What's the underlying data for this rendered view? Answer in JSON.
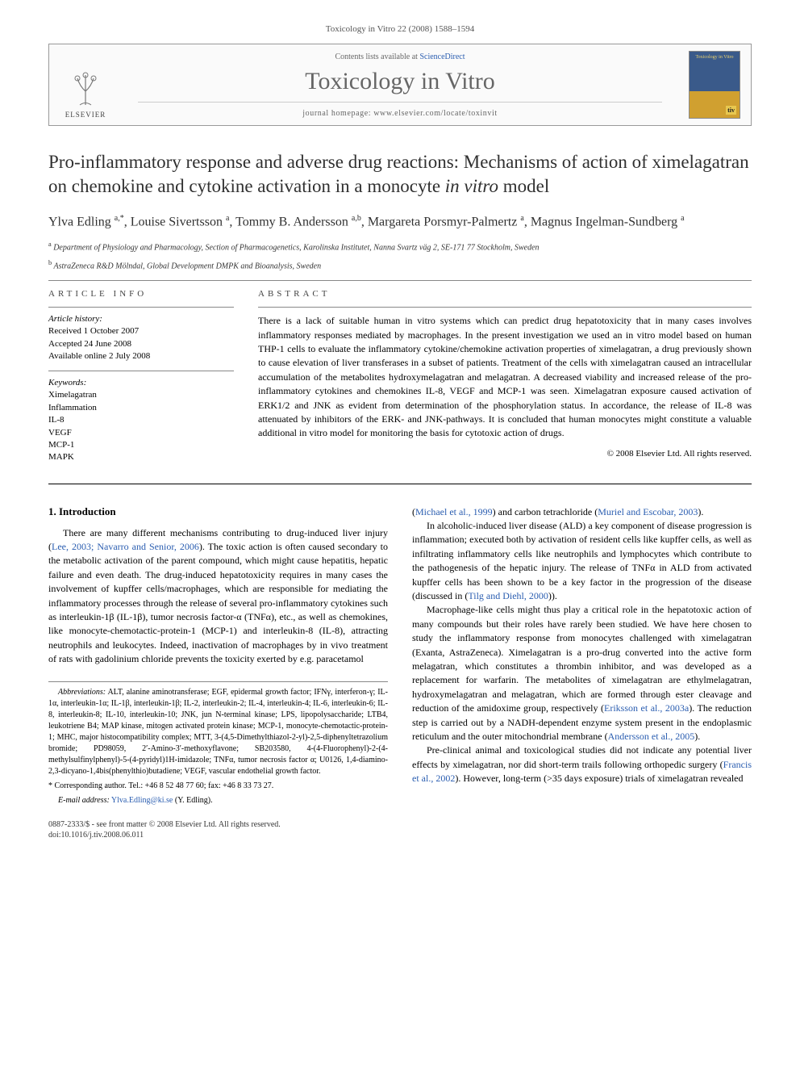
{
  "running_head": "Toxicology in Vitro 22 (2008) 1588–1594",
  "banner": {
    "contents_prefix": "Contents lists available at ",
    "contents_link": "ScienceDirect",
    "journal_name": "Toxicology in Vitro",
    "homepage_prefix": "journal homepage: ",
    "homepage_url": "www.elsevier.com/locate/toxinvit",
    "publisher": "ELSEVIER",
    "cover_title": "Toxicology in Vitro",
    "cover_badge": "tiv"
  },
  "title_a": "Pro-inflammatory response and adverse drug reactions: Mechanisms of action of ximelagatran on chemokine and cytokine activation in a monocyte ",
  "title_italic": "in vitro",
  "title_b": " model",
  "authors_html": "Ylva Edling <sup>a,*</sup>, Louise Sivertsson <sup>a</sup>, Tommy B. Andersson <sup>a,b</sup>, Margareta Porsmyr-Palmertz <sup>a</sup>, Magnus Ingelman-Sundberg <sup>a</sup>",
  "affiliations": [
    "a Department of Physiology and Pharmacology, Section of Pharmacogenetics, Karolinska Institutet, Nanna Svartz väg 2, SE-171 77 Stockholm, Sweden",
    "b AstraZeneca R&D Mölndal, Global Development DMPK and Bioanalysis, Sweden"
  ],
  "info": {
    "head": "ARTICLE INFO",
    "history_label": "Article history:",
    "history": [
      "Received 1 October 2007",
      "Accepted 24 June 2008",
      "Available online 2 July 2008"
    ],
    "kw_label": "Keywords:",
    "keywords": [
      "Ximelagatran",
      "Inflammation",
      "IL-8",
      "VEGF",
      "MCP-1",
      "MAPK"
    ]
  },
  "abstract": {
    "head": "ABSTRACT",
    "text": "There is a lack of suitable human in vitro systems which can predict drug hepatotoxicity that in many cases involves inflammatory responses mediated by macrophages. In the present investigation we used an in vitro model based on human THP-1 cells to evaluate the inflammatory cytokine/chemokine activation properties of ximelagatran, a drug previously shown to cause elevation of liver transferases in a subset of patients. Treatment of the cells with ximelagatran caused an intracellular accumulation of the metabolites hydroxymelagatran and melagatran. A decreased viability and increased release of the pro-inflammatory cytokines and chemokines IL-8, VEGF and MCP-1 was seen. Ximelagatran exposure caused activation of ERK1/2 and JNK as evident from determination of the phosphorylation status. In accordance, the release of IL-8 was attenuated by inhibitors of the ERK- and JNK-pathways. It is concluded that human monocytes might constitute a valuable additional in vitro model for monitoring the basis for cytotoxic action of drugs.",
    "copyright": "© 2008 Elsevier Ltd. All rights reserved."
  },
  "body": {
    "section_head": "1. Introduction",
    "col1_p1_a": "There are many different mechanisms contributing to drug-induced liver injury (",
    "col1_p1_ref1": "Lee, 2003; Navarro and Senior, 2006",
    "col1_p1_b": "). The toxic action is often caused secondary to the metabolic activation of the parent compound, which might cause hepatitis, hepatic failure and even death. The drug-induced hepatotoxicity requires in many cases the involvement of kupffer cells/macrophages, which are responsible for mediating the inflammatory processes through the release of several pro-inflammatory cytokines such as interleukin-1β (IL-1β), tumor necrosis factor-α (TNFα), etc., as well as chemokines, like monocyte-chemotactic-protein-1 (MCP-1) and interleukin-8 (IL-8), attracting neutrophils and leukocytes. Indeed, inactivation of macrophages by in vivo treatment of rats with gadolinium chloride prevents the toxicity exerted by e.g. paracetamol",
    "col2_top_a": "(",
    "col2_top_ref1": "Michael et al., 1999",
    "col2_top_b": ") and carbon tetrachloride (",
    "col2_top_ref2": "Muriel and Escobar, 2003",
    "col2_top_c": ").",
    "col2_p2_a": "In alcoholic-induced liver disease (ALD) a key component of disease progression is inflammation; executed both by activation of resident cells like kupffer cells, as well as infiltrating inflammatory cells like neutrophils and lymphocytes which contribute to the pathogenesis of the hepatic injury. The release of TNFα in ALD from activated kupffer cells has been shown to be a key factor in the progression of the disease (discussed in (",
    "col2_p2_ref": "Tilg and Diehl, 2000",
    "col2_p2_b": ")).",
    "col2_p3_a": "Macrophage-like cells might thus play a critical role in the hepatotoxic action of many compounds but their roles have rarely been studied. We have here chosen to study the inflammatory response from monocytes challenged with ximelagatran (Exanta, AstraZeneca). Ximelagatran is a pro-drug converted into the active form melagatran, which constitutes a thrombin inhibitor, and was developed as a replacement for warfarin. The metabolites of ximelagatran are ethylmelagatran, hydroxymelagatran and melagatran, which are formed through ester cleavage and reduction of the amidoxime group, respectively (",
    "col2_p3_ref1": "Eriksson et al., 2003a",
    "col2_p3_b": "). The reduction step is carried out by a NADH-dependent enzyme system present in the endoplasmic reticulum and the outer mitochondrial membrane (",
    "col2_p3_ref2": "Andersson et al., 2005",
    "col2_p3_c": ").",
    "col2_p4_a": "Pre-clinical animal and toxicological studies did not indicate any potential liver effects by ximelagatran, nor did short-term trails following orthopedic surgery (",
    "col2_p4_ref": "Francis et al., 2002",
    "col2_p4_b": "). However, long-term (>35 days exposure) trials of ximelagatran revealed"
  },
  "footnotes": {
    "abbrev_label": "Abbreviations:",
    "abbrev_text": " ALT, alanine aminotransferase; EGF, epidermal growth factor; IFNγ, interferon-γ; IL-1α, interleukin-1α; IL-1β, interleukin-1β; IL-2, interleukin-2; IL-4, interleukin-4; IL-6, interleukin-6; IL-8, interleukin-8; IL-10, interleukin-10; JNK, jun N-terminal kinase; LPS, lipopolysaccharide; LTB4, leukotriene B4; MAP kinase, mitogen activated protein kinase; MCP-1, monocyte-chemotactic-protein-1; MHC, major histocompatibility complex; MTT, 3-(4,5-Dimethylthiazol-2-yl)-2,5-diphenyltetrazolium bromide; PD98059, 2′-Amino-3′-methoxyflavone; SB203580, 4-(4-Fluorophenyl)-2-(4-methylsulfinylphenyl)-5-(4-pyridyl)1H-imidazole; TNFα, tumor necrosis factor α; U0126, 1,4-diamino-2,3-dicyano-1,4bis(phenylthio)butadiene; VEGF, vascular endothelial growth factor.",
    "corr_label": "* Corresponding author.",
    "corr_text": " Tel.: +46 8 52 48 77 60; fax: +46 8 33 73 27.",
    "email_label": "E-mail address:",
    "email": " Ylva.Edling@ki.se",
    "email_tail": " (Y. Edling)."
  },
  "bottom": {
    "issn_line": "0887-2333/$ - see front matter © 2008 Elsevier Ltd. All rights reserved.",
    "doi_line": "doi:10.1016/j.tiv.2008.06.011"
  },
  "colors": {
    "link": "#2a5db0",
    "text": "#000000",
    "muted": "#666666",
    "rule": "#888888"
  }
}
